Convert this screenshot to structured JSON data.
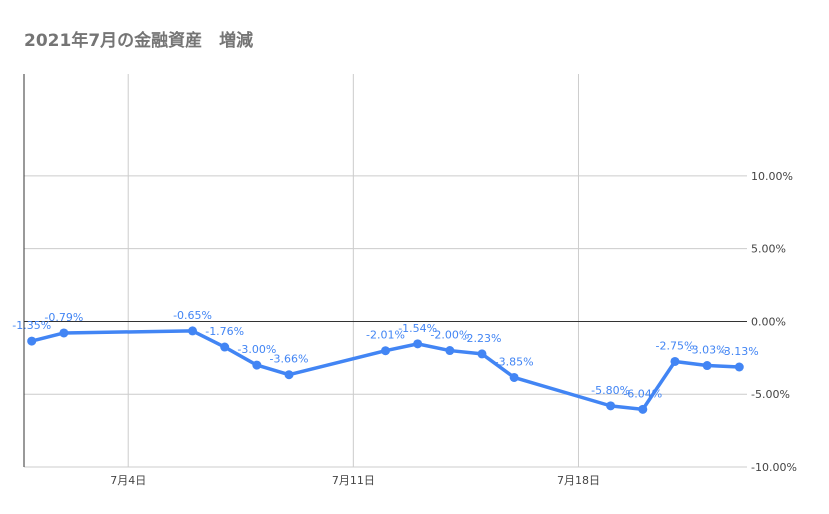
{
  "chart_data": {
    "type": "line",
    "title": "2021年7月の金融資産　増減",
    "xlabel": "",
    "ylabel": "",
    "x_ticks": [
      {
        "day": 4,
        "label": "7月4日"
      },
      {
        "day": 11,
        "label": "7月11日"
      },
      {
        "day": 18,
        "label": "7月18日"
      }
    ],
    "y_ticks": [
      {
        "value": 10,
        "label": "10.00%"
      },
      {
        "value": 5,
        "label": "5.00%"
      },
      {
        "value": 0,
        "label": "0.00%"
      },
      {
        "value": -5,
        "label": "-5.00%"
      },
      {
        "value": -10,
        "label": "-10.00%"
      }
    ],
    "xlim": [
      0.76,
      23.24
    ],
    "ylim": [
      -10,
      17
    ],
    "grid": true,
    "legend": "none",
    "color": "#4285f4",
    "label_color": "#4285f4",
    "series": [
      {
        "x": [
          1,
          2,
          6,
          7,
          8,
          9,
          12,
          13,
          14,
          15,
          16,
          19,
          20,
          21,
          22,
          23
        ],
        "values": [
          -1.35,
          -0.79,
          -0.65,
          -1.76,
          -3.0,
          -3.66,
          -2.01,
          -1.54,
          -2.0,
          -2.23,
          -3.85,
          -5.8,
          -6.04,
          -2.75,
          -3.03,
          -3.13
        ],
        "labels": [
          "-1.35%",
          "-0.79%",
          "-0.65%",
          "-1.76%",
          "-3.00%",
          "-3.66%",
          "-2.01%",
          "-1.54%",
          "-2.00%",
          "-2.23%",
          "-3.85%",
          "-5.80%",
          "-6.04%",
          "-2.75%",
          "-3.03%",
          "-3.13%"
        ]
      }
    ]
  }
}
